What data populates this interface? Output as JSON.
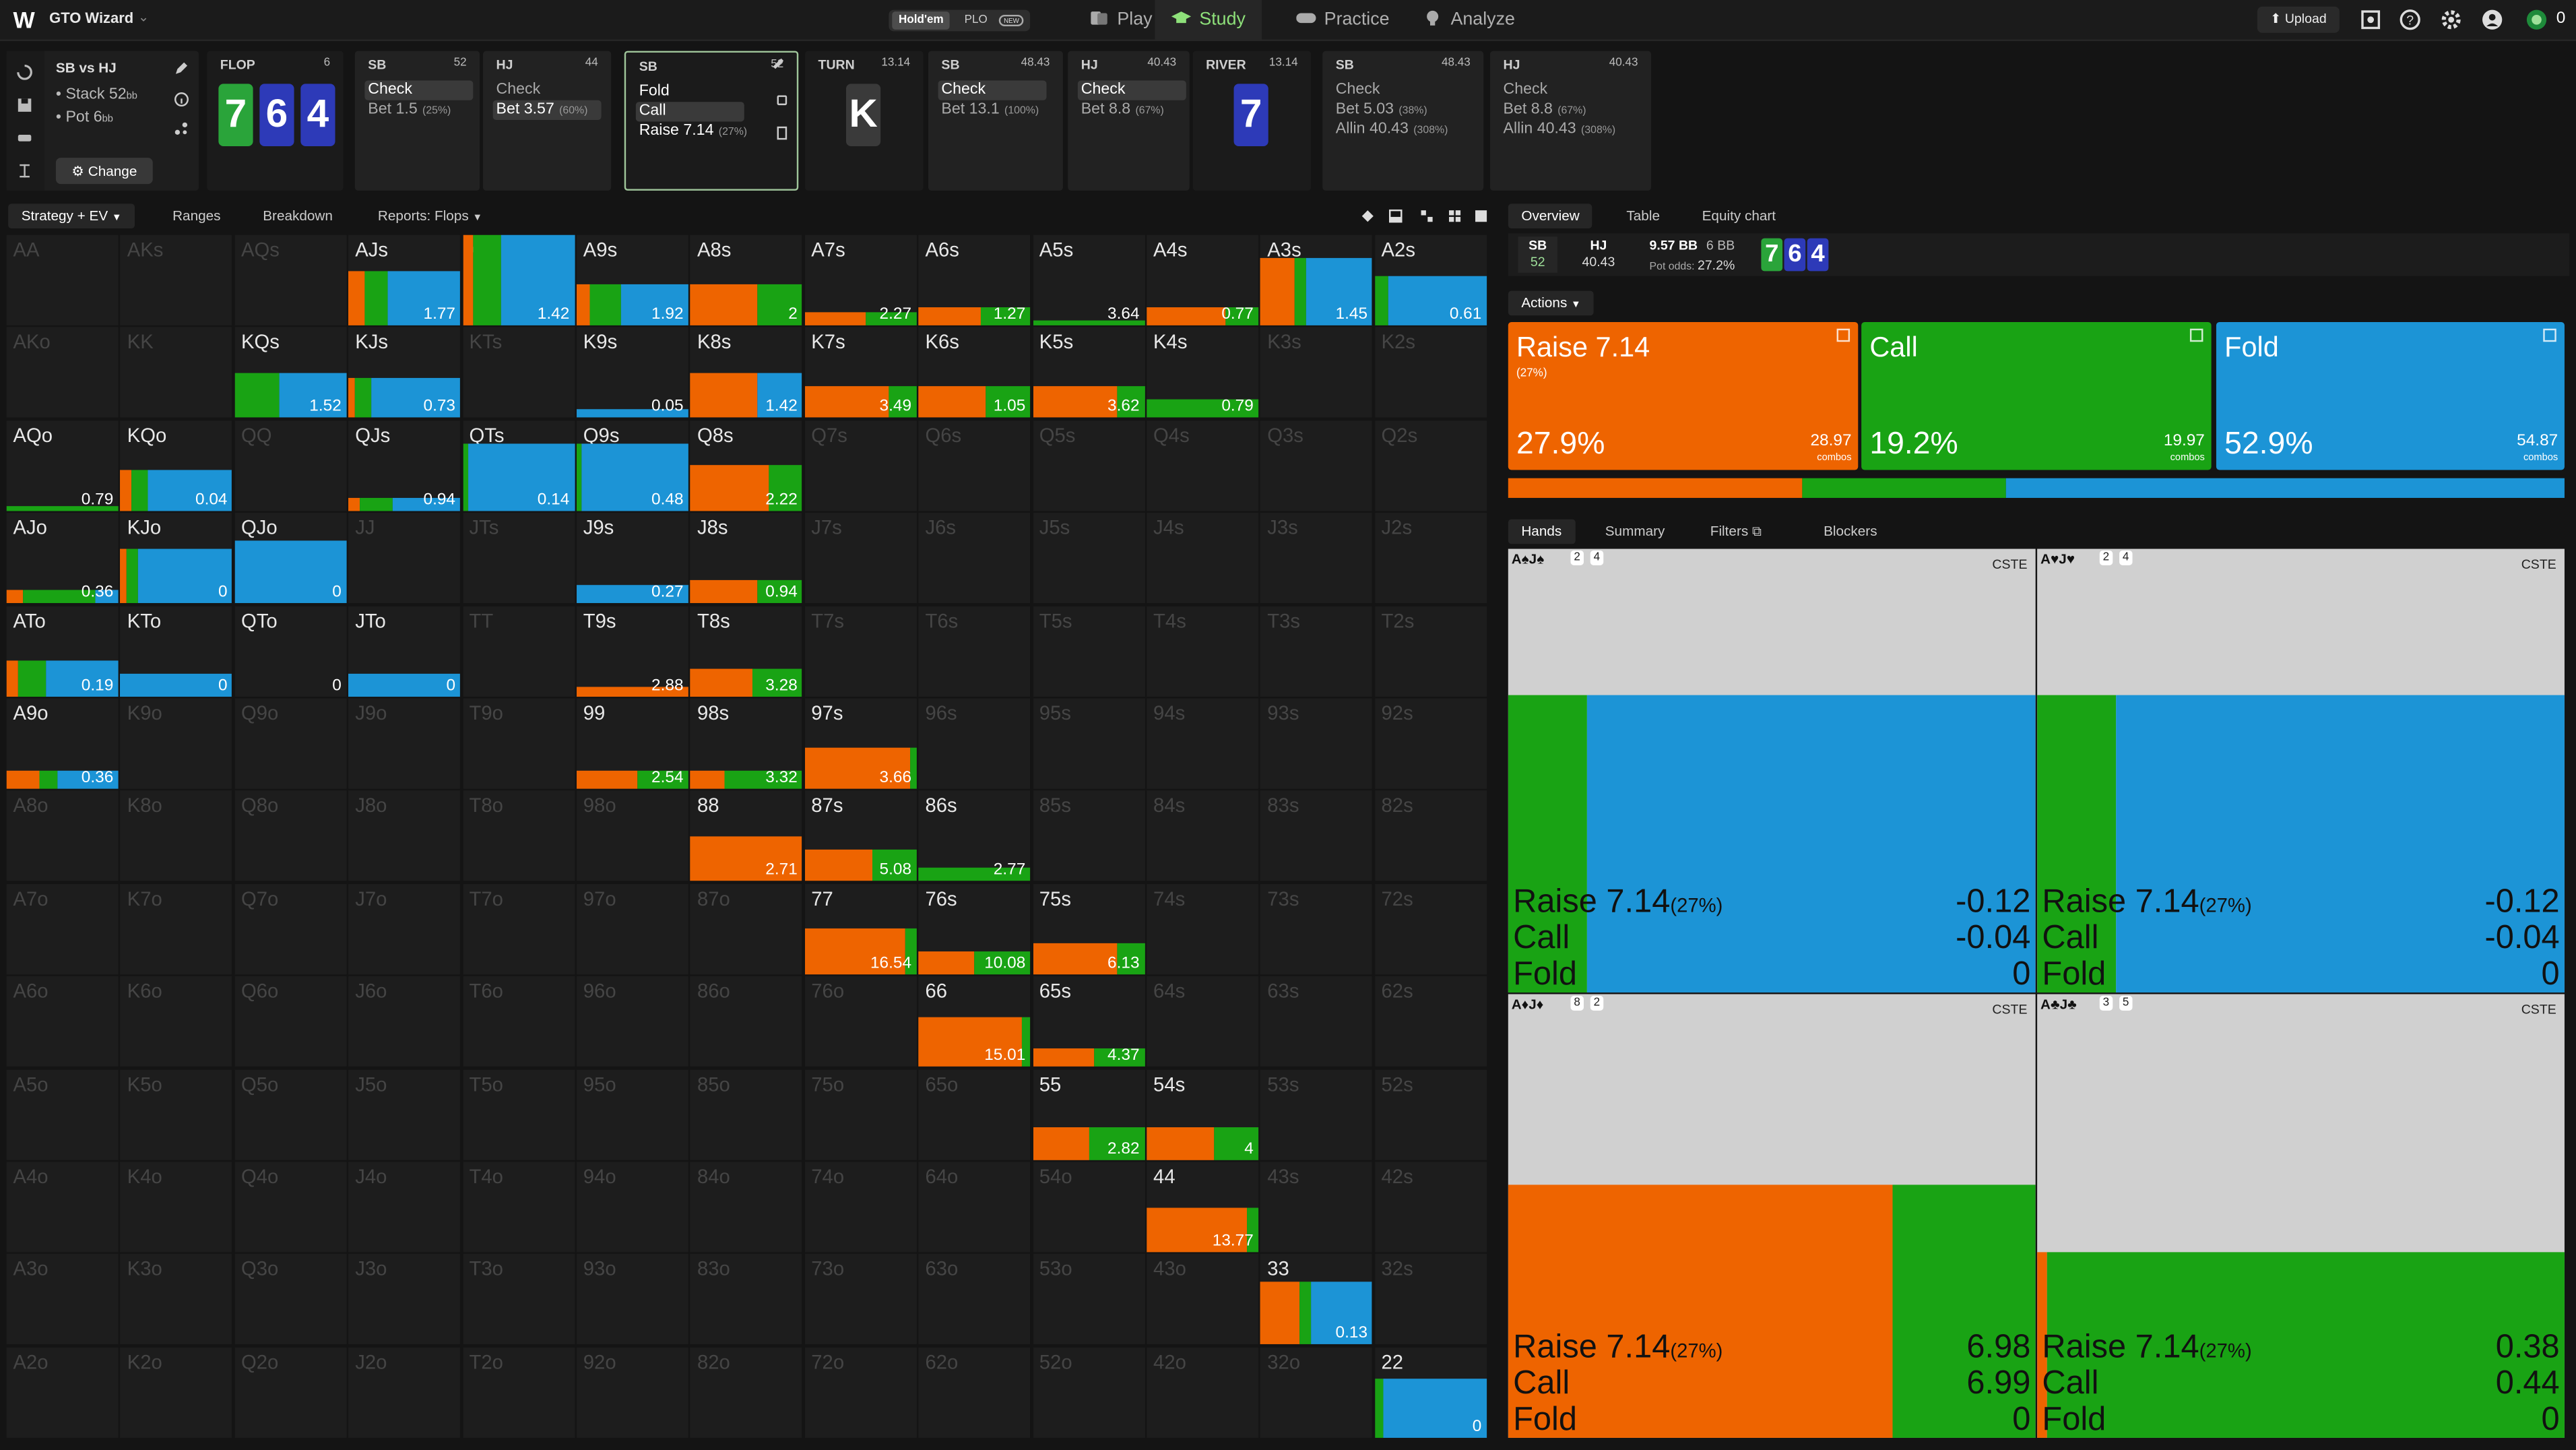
{
  "app": {
    "name": "GTO Wizard",
    "logo": "W"
  },
  "game_toggle": {
    "holdem": "Hold'em",
    "plo": "PLO",
    "new": "NEW"
  },
  "nav": {
    "play": "Play",
    "study": "Study",
    "practice": "Practice",
    "analyze": "Analyze",
    "upload": "Upload",
    "bank": "0"
  },
  "colors": {
    "raise": "#ee6400",
    "call": "#19a314",
    "fold": "#1c94d6"
  },
  "left_panel": {
    "matchup": "SB vs HJ",
    "stack_label": "Stack",
    "stack": "52",
    "stack_unit": "bb",
    "pot_label": "Pot",
    "pot": "6",
    "pot_unit": "bb",
    "change": "Change"
  },
  "spots": [
    {
      "kind": "street",
      "name": "FLOP",
      "value": "6",
      "cards": [
        {
          "rank": "7",
          "suit": "c"
        },
        {
          "rank": "6",
          "suit": "d"
        },
        {
          "rank": "4",
          "suit": "d"
        }
      ]
    },
    {
      "kind": "action",
      "name": "SB",
      "value": "52",
      "rows": [
        {
          "label": "Check",
          "pct": "",
          "hl": true
        },
        {
          "label": "Bet 1.5",
          "pct": "(25%)",
          "hl": false
        }
      ]
    },
    {
      "kind": "action",
      "name": "HJ",
      "value": "44",
      "rows": [
        {
          "label": "Check",
          "pct": "",
          "hl": false
        },
        {
          "label": "Bet 3.57",
          "pct": "(60%)",
          "hl": true
        }
      ]
    },
    {
      "kind": "action",
      "name": "SB",
      "value": "52",
      "sel": true,
      "rows": [
        {
          "label": "Fold",
          "pct": "",
          "hl": false
        },
        {
          "label": "Call",
          "pct": "",
          "hl": true
        },
        {
          "label": "Raise 7.14",
          "pct": "(27%)",
          "hl": false
        }
      ]
    },
    {
      "kind": "street",
      "name": "TURN",
      "value": "13.14",
      "cards": [
        {
          "rank": "K",
          "suit": "x"
        }
      ]
    },
    {
      "kind": "action",
      "name": "SB",
      "value": "48.43",
      "rows": [
        {
          "label": "Check",
          "pct": "",
          "hl": true
        },
        {
          "label": "Bet 13.1",
          "pct": "(100%)",
          "hl": false
        }
      ]
    },
    {
      "kind": "action",
      "name": "HJ",
      "value": "40.43",
      "rows": [
        {
          "label": "Check",
          "pct": "",
          "hl": true
        },
        {
          "label": "Bet 8.8",
          "pct": "(67%)",
          "hl": false
        }
      ]
    },
    {
      "kind": "street",
      "name": "RIVER",
      "value": "13.14",
      "cards": [
        {
          "rank": "7",
          "suit": "d"
        }
      ]
    },
    {
      "kind": "action",
      "name": "SB",
      "value": "48.43",
      "rows": [
        {
          "label": "Check",
          "pct": "",
          "hl": false
        },
        {
          "label": "Bet 5.03",
          "pct": "(38%)",
          "hl": false
        },
        {
          "label": "Allin 40.43",
          "pct": "(308%)",
          "hl": false
        }
      ]
    },
    {
      "kind": "action",
      "name": "HJ",
      "value": "40.43",
      "rows": [
        {
          "label": "Check",
          "pct": "",
          "hl": false
        },
        {
          "label": "Bet 8.8",
          "pct": "(67%)",
          "hl": false
        },
        {
          "label": "Allin 40.43",
          "pct": "(308%)",
          "hl": false
        }
      ]
    }
  ],
  "tabs": {
    "strategy": "Strategy + EV",
    "ranges": "Ranges",
    "breakdown": "Breakdown",
    "reports": "Reports: Flops"
  },
  "grid": [
    {
      "h": "AA",
      "a": 0
    },
    {
      "h": "AKs",
      "a": 0
    },
    {
      "h": "AQs",
      "a": 0
    },
    {
      "h": "AJs",
      "a": 1,
      "r": 0.15,
      "c": 0.2,
      "f": 0.65,
      "bh": 0.6,
      "ev": "1.77"
    },
    {
      "h": "ATs",
      "a": 1,
      "r": 0.1,
      "c": 0.25,
      "f": 0.65,
      "bh": 1.0,
      "ev": "1.42"
    },
    {
      "h": "A9s",
      "a": 1,
      "r": 0.12,
      "c": 0.28,
      "f": 0.6,
      "bh": 0.45,
      "ev": "1.92"
    },
    {
      "h": "A8s",
      "a": 1,
      "r": 0.6,
      "c": 0.4,
      "f": 0,
      "bh": 0.45,
      "ev": "2"
    },
    {
      "h": "A7s",
      "a": 1,
      "r": 0.55,
      "c": 0.45,
      "f": 0,
      "bh": 0.15,
      "ev": "2.27"
    },
    {
      "h": "A6s",
      "a": 1,
      "r": 0.55,
      "c": 0.45,
      "f": 0,
      "bh": 0.2,
      "ev": "1.27"
    },
    {
      "h": "A5s",
      "a": 1,
      "r": 0,
      "c": 1,
      "f": 0,
      "bh": 0.05,
      "ev": "3.64"
    },
    {
      "h": "A4s",
      "a": 1,
      "r": 0.7,
      "c": 0.3,
      "f": 0,
      "bh": 0.2,
      "ev": "0.77"
    },
    {
      "h": "A3s",
      "a": 1,
      "r": 0.3,
      "c": 0.1,
      "f": 0.6,
      "bh": 0.75,
      "ev": "1.45"
    },
    {
      "h": "A2s",
      "a": 1,
      "r": 0,
      "c": 0.12,
      "f": 0.88,
      "bh": 0.55,
      "ev": "0.61"
    },
    {
      "h": "AKo",
      "a": 0
    },
    {
      "h": "KK",
      "a": 0
    },
    {
      "h": "KQs",
      "a": 1,
      "r": 0,
      "c": 0.4,
      "f": 0.6,
      "bh": 0.5,
      "ev": "1.52"
    },
    {
      "h": "KJs",
      "a": 1,
      "r": 0.05,
      "c": 0.15,
      "f": 0.8,
      "bh": 0.45,
      "ev": "0.73"
    },
    {
      "h": "KTs",
      "a": 0
    },
    {
      "h": "K9s",
      "a": 1,
      "r": 0,
      "c": 0,
      "f": 1,
      "bh": 0.1,
      "ev": "0.05"
    },
    {
      "h": "K8s",
      "a": 1,
      "r": 0.6,
      "c": 0,
      "f": 0.4,
      "bh": 0.5,
      "ev": "1.42"
    },
    {
      "h": "K7s",
      "a": 1,
      "r": 0.75,
      "c": 0.25,
      "f": 0,
      "bh": 0.35,
      "ev": "3.49"
    },
    {
      "h": "K6s",
      "a": 1,
      "r": 0.6,
      "c": 0.4,
      "f": 0,
      "bh": 0.35,
      "ev": "1.05"
    },
    {
      "h": "K5s",
      "a": 1,
      "r": 0.75,
      "c": 0.25,
      "f": 0,
      "bh": 0.35,
      "ev": "3.62"
    },
    {
      "h": "K4s",
      "a": 1,
      "r": 0,
      "c": 1,
      "f": 0,
      "bh": 0.2,
      "ev": "0.79"
    },
    {
      "h": "K3s",
      "a": 0
    },
    {
      "h": "K2s",
      "a": 0
    },
    {
      "h": "AQo",
      "a": 1,
      "r": 0,
      "c": 1,
      "f": 0,
      "bh": 0.05,
      "ev": "0.79"
    },
    {
      "h": "KQo",
      "a": 1,
      "r": 0.1,
      "c": 0.15,
      "f": 0.75,
      "bh": 0.45,
      "ev": "0.04"
    },
    {
      "h": "QQ",
      "a": 0
    },
    {
      "h": "QJs",
      "a": 1,
      "r": 0.1,
      "c": 0.3,
      "f": 0.6,
      "bh": 0.15,
      "ev": "0.94"
    },
    {
      "h": "QTs",
      "a": 1,
      "r": 0,
      "c": 0.05,
      "f": 0.95,
      "bh": 0.75,
      "ev": "0.14"
    },
    {
      "h": "Q9s",
      "a": 1,
      "r": 0,
      "c": 0.05,
      "f": 0.95,
      "bh": 0.75,
      "ev": "0.48"
    },
    {
      "h": "Q8s",
      "a": 1,
      "r": 0.7,
      "c": 0.3,
      "f": 0,
      "bh": 0.5,
      "ev": "2.22"
    },
    {
      "h": "Q7s",
      "a": 0
    },
    {
      "h": "Q6s",
      "a": 0
    },
    {
      "h": "Q5s",
      "a": 0
    },
    {
      "h": "Q4s",
      "a": 0
    },
    {
      "h": "Q3s",
      "a": 0
    },
    {
      "h": "Q2s",
      "a": 0
    },
    {
      "h": "AJo",
      "a": 1,
      "r": 0.15,
      "c": 0.65,
      "f": 0.2,
      "bh": 0.15,
      "ev": "0.36"
    },
    {
      "h": "KJo",
      "a": 1,
      "r": 0.05,
      "c": 0.1,
      "f": 0.85,
      "bh": 0.6,
      "ev": "0"
    },
    {
      "h": "QJo",
      "a": 1,
      "r": 0,
      "c": 0,
      "f": 1,
      "bh": 0.7,
      "ev": "0"
    },
    {
      "h": "JJ",
      "a": 0
    },
    {
      "h": "JTs",
      "a": 0
    },
    {
      "h": "J9s",
      "a": 1,
      "r": 0,
      "c": 0,
      "f": 1,
      "bh": 0.2,
      "ev": "0.27"
    },
    {
      "h": "J8s",
      "a": 1,
      "r": 0.6,
      "c": 0.4,
      "f": 0,
      "bh": 0.25,
      "ev": "0.94"
    },
    {
      "h": "J7s",
      "a": 0
    },
    {
      "h": "J6s",
      "a": 0
    },
    {
      "h": "J5s",
      "a": 0
    },
    {
      "h": "J4s",
      "a": 0
    },
    {
      "h": "J3s",
      "a": 0
    },
    {
      "h": "J2s",
      "a": 0
    },
    {
      "h": "ATo",
      "a": 1,
      "r": 0.1,
      "c": 0.25,
      "f": 0.65,
      "bh": 0.4,
      "ev": "0.19"
    },
    {
      "h": "KTo",
      "a": 1,
      "r": 0,
      "c": 0,
      "f": 1,
      "bh": 0.25,
      "ev": "0"
    },
    {
      "h": "QTo",
      "a": 1,
      "r": 0,
      "c": 0,
      "f": 0,
      "bh": 0,
      "ev": "0"
    },
    {
      "h": "JTo",
      "a": 1,
      "r": 0,
      "c": 0,
      "f": 1,
      "bh": 0.25,
      "ev": "0"
    },
    {
      "h": "TT",
      "a": 0
    },
    {
      "h": "T9s",
      "a": 1,
      "r": 1,
      "c": 0,
      "f": 0,
      "bh": 0.1,
      "ev": "2.88"
    },
    {
      "h": "T8s",
      "a": 1,
      "r": 0.55,
      "c": 0.45,
      "f": 0,
      "bh": 0.3,
      "ev": "3.28"
    },
    {
      "h": "T7s",
      "a": 0
    },
    {
      "h": "T6s",
      "a": 0
    },
    {
      "h": "T5s",
      "a": 0
    },
    {
      "h": "T4s",
      "a": 0
    },
    {
      "h": "T3s",
      "a": 0
    },
    {
      "h": "T2s",
      "a": 0
    },
    {
      "h": "A9o",
      "a": 1,
      "r": 0.3,
      "c": 0.15,
      "f": 0.55,
      "bh": 0.2,
      "ev": "0.36"
    },
    {
      "h": "K9o",
      "a": 0
    },
    {
      "h": "Q9o",
      "a": 0
    },
    {
      "h": "J9o",
      "a": 0
    },
    {
      "h": "T9o",
      "a": 0
    },
    {
      "h": "99",
      "a": 1,
      "r": 0.55,
      "c": 0.45,
      "f": 0,
      "bh": 0.2,
      "ev": "2.54"
    },
    {
      "h": "98s",
      "a": 1,
      "r": 0.3,
      "c": 0.7,
      "f": 0,
      "bh": 0.2,
      "ev": "3.32"
    },
    {
      "h": "97s",
      "a": 1,
      "r": 0.95,
      "c": 0.05,
      "f": 0,
      "bh": 0.45,
      "ev": "3.66"
    },
    {
      "h": "96s",
      "a": 0
    },
    {
      "h": "95s",
      "a": 0
    },
    {
      "h": "94s",
      "a": 0
    },
    {
      "h": "93s",
      "a": 0
    },
    {
      "h": "92s",
      "a": 0
    },
    {
      "h": "A8o",
      "a": 0
    },
    {
      "h": "K8o",
      "a": 0
    },
    {
      "h": "Q8o",
      "a": 0
    },
    {
      "h": "J8o",
      "a": 0
    },
    {
      "h": "T8o",
      "a": 0
    },
    {
      "h": "98o",
      "a": 0
    },
    {
      "h": "88",
      "a": 1,
      "r": 1,
      "c": 0,
      "f": 0,
      "bh": 0.5,
      "ev": "2.71"
    },
    {
      "h": "87s",
      "a": 1,
      "r": 0.6,
      "c": 0.4,
      "f": 0,
      "bh": 0.35,
      "ev": "5.08"
    },
    {
      "h": "86s",
      "a": 1,
      "r": 0,
      "c": 1,
      "f": 0,
      "bh": 0.15,
      "ev": "2.77"
    },
    {
      "h": "85s",
      "a": 0
    },
    {
      "h": "84s",
      "a": 0
    },
    {
      "h": "83s",
      "a": 0
    },
    {
      "h": "82s",
      "a": 0
    },
    {
      "h": "A7o",
      "a": 0
    },
    {
      "h": "K7o",
      "a": 0
    },
    {
      "h": "Q7o",
      "a": 0
    },
    {
      "h": "J7o",
      "a": 0
    },
    {
      "h": "T7o",
      "a": 0
    },
    {
      "h": "97o",
      "a": 0
    },
    {
      "h": "87o",
      "a": 0
    },
    {
      "h": "77",
      "a": 1,
      "r": 0.9,
      "c": 0.1,
      "f": 0,
      "bh": 0.5,
      "ev": "16.54"
    },
    {
      "h": "76s",
      "a": 1,
      "r": 0.5,
      "c": 0.5,
      "f": 0,
      "bh": 0.25,
      "ev": "10.08"
    },
    {
      "h": "75s",
      "a": 1,
      "r": 0.75,
      "c": 0.25,
      "f": 0,
      "bh": 0.35,
      "ev": "6.13"
    },
    {
      "h": "74s",
      "a": 0
    },
    {
      "h": "73s",
      "a": 0
    },
    {
      "h": "72s",
      "a": 0
    },
    {
      "h": "A6o",
      "a": 0
    },
    {
      "h": "K6o",
      "a": 0
    },
    {
      "h": "Q6o",
      "a": 0
    },
    {
      "h": "J6o",
      "a": 0
    },
    {
      "h": "T6o",
      "a": 0
    },
    {
      "h": "96o",
      "a": 0
    },
    {
      "h": "86o",
      "a": 0
    },
    {
      "h": "76o",
      "a": 0
    },
    {
      "h": "66",
      "a": 1,
      "r": 0.92,
      "c": 0.08,
      "f": 0,
      "bh": 0.55,
      "ev": "15.01"
    },
    {
      "h": "65s",
      "a": 1,
      "r": 0.55,
      "c": 0.45,
      "f": 0,
      "bh": 0.2,
      "ev": "4.37"
    },
    {
      "h": "64s",
      "a": 0
    },
    {
      "h": "63s",
      "a": 0
    },
    {
      "h": "62s",
      "a": 0
    },
    {
      "h": "A5o",
      "a": 0
    },
    {
      "h": "K5o",
      "a": 0
    },
    {
      "h": "Q5o",
      "a": 0
    },
    {
      "h": "J5o",
      "a": 0
    },
    {
      "h": "T5o",
      "a": 0
    },
    {
      "h": "95o",
      "a": 0
    },
    {
      "h": "85o",
      "a": 0
    },
    {
      "h": "75o",
      "a": 0
    },
    {
      "h": "65o",
      "a": 0
    },
    {
      "h": "55",
      "a": 1,
      "r": 0.5,
      "c": 0.5,
      "f": 0,
      "bh": 0.35,
      "ev": "2.82"
    },
    {
      "h": "54s",
      "a": 1,
      "r": 0.6,
      "c": 0.4,
      "f": 0,
      "bh": 0.35,
      "ev": "4"
    },
    {
      "h": "53s",
      "a": 0
    },
    {
      "h": "52s",
      "a": 0
    },
    {
      "h": "A4o",
      "a": 0
    },
    {
      "h": "K4o",
      "a": 0
    },
    {
      "h": "Q4o",
      "a": 0
    },
    {
      "h": "J4o",
      "a": 0
    },
    {
      "h": "T4o",
      "a": 0
    },
    {
      "h": "94o",
      "a": 0
    },
    {
      "h": "84o",
      "a": 0
    },
    {
      "h": "74o",
      "a": 0
    },
    {
      "h": "64o",
      "a": 0
    },
    {
      "h": "54o",
      "a": 0
    },
    {
      "h": "44",
      "a": 1,
      "r": 0.9,
      "c": 0.1,
      "f": 0,
      "bh": 0.5,
      "ev": "13.77"
    },
    {
      "h": "43s",
      "a": 0
    },
    {
      "h": "42s",
      "a": 0
    },
    {
      "h": "A3o",
      "a": 0
    },
    {
      "h": "K3o",
      "a": 0
    },
    {
      "h": "Q3o",
      "a": 0
    },
    {
      "h": "J3o",
      "a": 0
    },
    {
      "h": "T3o",
      "a": 0
    },
    {
      "h": "93o",
      "a": 0
    },
    {
      "h": "83o",
      "a": 0
    },
    {
      "h": "73o",
      "a": 0
    },
    {
      "h": "63o",
      "a": 0
    },
    {
      "h": "53o",
      "a": 0
    },
    {
      "h": "43o",
      "a": 0
    },
    {
      "h": "33",
      "a": 1,
      "r": 0.35,
      "c": 0.1,
      "f": 0.55,
      "bh": 0.7,
      "ev": "0.13"
    },
    {
      "h": "32s",
      "a": 0
    },
    {
      "h": "A2o",
      "a": 0
    },
    {
      "h": "K2o",
      "a": 0
    },
    {
      "h": "Q2o",
      "a": 0
    },
    {
      "h": "J2o",
      "a": 0
    },
    {
      "h": "T2o",
      "a": 0
    },
    {
      "h": "92o",
      "a": 0
    },
    {
      "h": "82o",
      "a": 0
    },
    {
      "h": "72o",
      "a": 0
    },
    {
      "h": "62o",
      "a": 0
    },
    {
      "h": "52o",
      "a": 0
    },
    {
      "h": "42o",
      "a": 0
    },
    {
      "h": "32o",
      "a": 0
    },
    {
      "h": "22",
      "a": 1,
      "r": 0,
      "c": 0.08,
      "f": 0.92,
      "bh": 0.65,
      "ev": "0"
    }
  ],
  "right_tabs": {
    "overview": "Overview",
    "table": "Table",
    "equity": "Equity chart"
  },
  "overview": {
    "p1": "SB",
    "p1v": "52",
    "p2": "HJ",
    "p2v": "40.43",
    "pot": "9.57 BB",
    "bb": "6 BB",
    "odds_label": "Pot odds:",
    "odds": "27.2%",
    "board": [
      "7",
      "6",
      "4"
    ]
  },
  "actions_label": "Actions",
  "actions": [
    {
      "name": "Raise 7.14",
      "sub": "(27%)",
      "pct": "27.9%",
      "combos": "28.97",
      "combos_label": "combos",
      "share": 0.279
    },
    {
      "name": "Call",
      "sub": "",
      "pct": "19.2%",
      "combos": "19.97",
      "combos_label": "combos",
      "share": 0.192
    },
    {
      "name": "Fold",
      "sub": "",
      "pct": "52.9%",
      "combos": "54.87",
      "combos_label": "combos",
      "share": 0.529
    }
  ],
  "lower_tabs": {
    "hands": "Hands",
    "summary": "Summary",
    "filters": "Filters",
    "blockers": "Blockers"
  },
  "hands": [
    {
      "combo": "A♠J♠",
      "b1": "2",
      "b2": "4",
      "tag": "CSTE",
      "fill": 0.67,
      "r": 0,
      "c": 0.15,
      "f": 0.85,
      "rows": [
        {
          "l": "Raise 7.14",
          "s": "(27%)",
          "v": "-0.12"
        },
        {
          "l": "Call",
          "s": "",
          "v": "-0.04"
        },
        {
          "l": "Fold",
          "s": "",
          "v": "0"
        }
      ]
    },
    {
      "combo": "A♥J♥",
      "b1": "2",
      "b2": "4",
      "tag": "CSTE",
      "fill": 0.67,
      "r": 0,
      "c": 0.15,
      "f": 0.85,
      "rows": [
        {
          "l": "Raise 7.14",
          "s": "(27%)",
          "v": "-0.12"
        },
        {
          "l": "Call",
          "s": "",
          "v": "-0.04"
        },
        {
          "l": "Fold",
          "s": "",
          "v": "0"
        }
      ]
    },
    {
      "combo": "A♦J♦",
      "b1": "8",
      "b2": "2",
      "tag": "CSTE",
      "fill": 0.57,
      "r": 0.73,
      "c": 0.27,
      "f": 0,
      "rows": [
        {
          "l": "Raise 7.14",
          "s": "(27%)",
          "v": "6.98"
        },
        {
          "l": "Call",
          "s": "",
          "v": "6.99"
        },
        {
          "l": "Fold",
          "s": "",
          "v": "0"
        }
      ]
    },
    {
      "combo": "A♣J♣",
      "b1": "3",
      "b2": "5",
      "tag": "CSTE",
      "fill": 0.42,
      "r": 0.02,
      "c": 0.98,
      "f": 0,
      "rows": [
        {
          "l": "Raise 7.14",
          "s": "(27%)",
          "v": "0.38"
        },
        {
          "l": "Call",
          "s": "",
          "v": "0.44"
        },
        {
          "l": "Fold",
          "s": "",
          "v": "0"
        }
      ]
    }
  ]
}
